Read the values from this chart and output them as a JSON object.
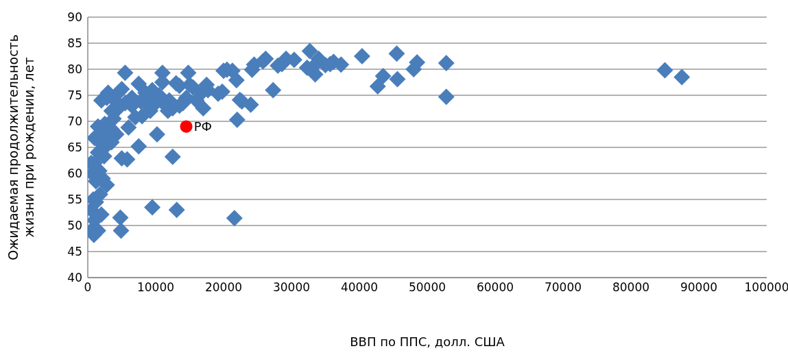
{
  "chart_data": {
    "type": "scatter",
    "xlabel": "ВВП по ППС, долл. США",
    "ylabel": "Ожидаемая продолжительность жизни при рождении, лет",
    "xlim": [
      0,
      100000
    ],
    "xticks": [
      0,
      10000,
      20000,
      30000,
      40000,
      50000,
      60000,
      70000,
      80000,
      90000,
      100000
    ],
    "ylim": [
      40,
      90
    ],
    "yticks": [
      40,
      45,
      50,
      55,
      60,
      65,
      70,
      75,
      80,
      85,
      90
    ],
    "grid": "y",
    "marker": "diamond",
    "series": [
      {
        "color": "#4a7ebb",
        "x": [
          85000,
          87500,
          52800,
          52800,
          48500,
          48000,
          45500,
          45600,
          43500,
          42700,
          40400,
          37300,
          36200,
          35700,
          35000,
          34000,
          33500,
          33200,
          32700,
          32300,
          30400,
          29200,
          28600,
          28000,
          27300,
          26200,
          25800,
          24500,
          24200,
          24000,
          22700,
          22400,
          22000,
          21600,
          21900,
          21300,
          20500,
          20000,
          19800,
          19200,
          17700,
          17500,
          17000,
          16800,
          15500,
          15000,
          14800,
          14500,
          14000,
          13500,
          13000,
          13100,
          12500,
          12000,
          11500,
          11000,
          11000,
          10500,
          10200,
          10000,
          9500,
          9500,
          9000,
          8500,
          8000,
          7800,
          7500,
          7500,
          7000,
          6500,
          6000,
          5800,
          5500,
          5500,
          5000,
          5000,
          4800,
          4900,
          4500,
          4500,
          4200,
          4000,
          3800,
          3500,
          3500,
          3200,
          3000,
          2800,
          2500,
          2500,
          2800,
          2400,
          2000,
          2000,
          2000,
          1800,
          1700,
          1500,
          1500,
          1200,
          1000,
          1000,
          800,
          500,
          500,
          500,
          1200,
          1500,
          1000,
          900,
          600,
          1800,
          2200,
          3500,
          6500,
          8500,
          9200,
          11800,
          12500,
          13500,
          16000
        ],
        "values": [
          79.8,
          78.5,
          81.2,
          74.7,
          81.3,
          80,
          83,
          78.1,
          78.7,
          76.7,
          82.5,
          80.9,
          81.4,
          81,
          80.8,
          82,
          79,
          80.5,
          83.5,
          80.3,
          81.8,
          82,
          81,
          80.7,
          76,
          82,
          81.5,
          80.9,
          79.9,
          73.2,
          73.8,
          74.1,
          70.3,
          51.4,
          77.9,
          79.7,
          79.9,
          79.7,
          75.7,
          75.3,
          76,
          77,
          72.5,
          75.5,
          76.5,
          77,
          79.3,
          74.5,
          73.5,
          76.8,
          77.3,
          53,
          63.2,
          74,
          73,
          79.3,
          77.5,
          75,
          67.5,
          73.5,
          53.5,
          76,
          74,
          75.5,
          71,
          73.8,
          77.2,
          65.2,
          70.8,
          74.5,
          68.8,
          62.7,
          79.3,
          73.5,
          76.2,
          62.9,
          51.5,
          49,
          75.5,
          72.5,
          67.5,
          74,
          70.5,
          72,
          68.5,
          66.5,
          75.5,
          74.5,
          69.5,
          65,
          57.8,
          63.3,
          74,
          68,
          52.1,
          66,
          60.5,
          69,
          64,
          58.5,
          66.8,
          62,
          55,
          62,
          53,
          49,
          54.5,
          49,
          51,
          48.2,
          60,
          56,
          59,
          66,
          73,
          73.5,
          72,
          72,
          72.5,
          73,
          74
        ]
      },
      {
        "name": "РФ",
        "color": "#ff0000",
        "marker": "circle",
        "x": [
          14500
        ],
        "values": [
          69
        ]
      }
    ]
  }
}
